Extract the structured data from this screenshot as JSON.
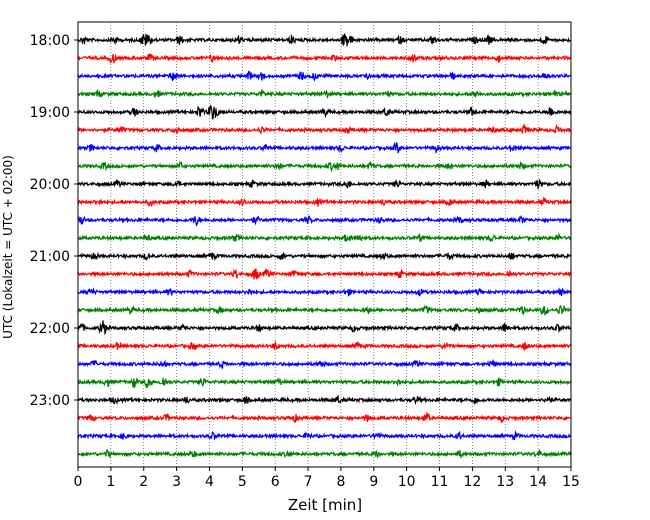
{
  "chart_data": {
    "type": "line",
    "title": "",
    "xlabel": "Zeit  [min]",
    "ylabel": "UTC (Lokalzeit = UTC + 02:00)",
    "xlim": [
      0,
      15
    ],
    "x_ticks": [
      "0",
      "1",
      "2",
      "3",
      "4",
      "5",
      "6",
      "7",
      "8",
      "9",
      "10",
      "11",
      "12",
      "13",
      "14",
      "15"
    ],
    "y_tick_labels": [
      "18:00",
      "19:00",
      "20:00",
      "21:00",
      "22:00",
      "23:00"
    ],
    "grid": "vertical dotted",
    "trace_colors": [
      "#000000",
      "#ff0000",
      "#0000ff",
      "#008000"
    ],
    "rows": [
      {
        "time": "18:00",
        "color": "#000000",
        "events": [
          [
            0.2,
            4
          ],
          [
            1.1,
            4
          ],
          [
            2.0,
            6
          ],
          [
            2.15,
            5
          ],
          [
            3.1,
            4
          ],
          [
            4.9,
            4
          ],
          [
            6.5,
            4
          ],
          [
            8.1,
            6
          ],
          [
            8.25,
            5
          ],
          [
            9.8,
            3
          ],
          [
            10.8,
            4
          ],
          [
            12.1,
            3
          ],
          [
            12.5,
            4
          ],
          [
            14.2,
            4
          ]
        ]
      },
      {
        "time": "18:15",
        "color": "#ff0000",
        "events": [
          [
            1.05,
            6
          ],
          [
            2.2,
            3
          ],
          [
            4.1,
            3
          ],
          [
            7.8,
            3
          ],
          [
            10.2,
            4
          ],
          [
            12.8,
            3
          ]
        ]
      },
      {
        "time": "18:30",
        "color": "#0000ff",
        "events": [
          [
            2.9,
            5
          ],
          [
            5.2,
            4
          ],
          [
            5.6,
            4
          ],
          [
            6.8,
            4
          ],
          [
            7.2,
            3
          ],
          [
            8.8,
            3
          ],
          [
            11.4,
            3
          ],
          [
            14.2,
            3
          ]
        ]
      },
      {
        "time": "18:45",
        "color": "#008000",
        "events": [
          [
            0.6,
            3
          ],
          [
            2.4,
            3
          ],
          [
            5.6,
            3
          ],
          [
            7.6,
            3
          ],
          [
            9.4,
            3
          ],
          [
            12.1,
            3
          ],
          [
            14.5,
            3
          ]
        ]
      },
      {
        "time": "19:00",
        "color": "#000000",
        "events": [
          [
            1.7,
            4
          ],
          [
            3.7,
            6
          ],
          [
            4.05,
            7
          ],
          [
            4.2,
            5
          ],
          [
            7.5,
            4
          ],
          [
            9.4,
            4
          ],
          [
            12.0,
            4
          ],
          [
            14.4,
            6
          ]
        ]
      },
      {
        "time": "19:15",
        "color": "#ff0000",
        "events": [
          [
            1.3,
            3
          ],
          [
            3.0,
            3
          ],
          [
            5.6,
            3
          ],
          [
            8.2,
            3
          ],
          [
            12.6,
            3
          ],
          [
            13.6,
            5
          ],
          [
            14.6,
            4
          ]
        ]
      },
      {
        "time": "19:30",
        "color": "#0000ff",
        "events": [
          [
            0.4,
            3
          ],
          [
            2.4,
            3
          ],
          [
            5.7,
            3
          ],
          [
            8.0,
            3
          ],
          [
            9.7,
            5
          ],
          [
            10.9,
            3
          ],
          [
            13.2,
            3
          ]
        ]
      },
      {
        "time": "19:45",
        "color": "#008000",
        "events": [
          [
            0.8,
            3
          ],
          [
            3.1,
            3
          ],
          [
            6.1,
            3
          ],
          [
            7.7,
            3
          ],
          [
            7.9,
            3
          ],
          [
            8.9,
            3
          ],
          [
            11.3,
            3
          ],
          [
            13.5,
            3
          ]
        ]
      },
      {
        "time": "20:00",
        "color": "#000000",
        "events": [
          [
            1.2,
            3
          ],
          [
            3.0,
            3
          ],
          [
            5.3,
            3
          ],
          [
            8.2,
            4
          ],
          [
            9.7,
            3
          ],
          [
            12.4,
            3
          ],
          [
            14.0,
            4
          ]
        ]
      },
      {
        "time": "20:15",
        "color": "#ff0000",
        "events": [
          [
            0.6,
            3
          ],
          [
            2.2,
            3
          ],
          [
            5.0,
            3
          ],
          [
            7.3,
            3
          ],
          [
            9.3,
            3
          ],
          [
            11.3,
            3
          ],
          [
            14.2,
            3
          ]
        ]
      },
      {
        "time": "20:30",
        "color": "#0000ff",
        "events": [
          [
            0.1,
            4
          ],
          [
            3.6,
            5
          ],
          [
            5.4,
            3
          ],
          [
            7.0,
            3
          ],
          [
            9.2,
            3
          ],
          [
            11.6,
            3
          ],
          [
            13.5,
            3
          ]
        ]
      },
      {
        "time": "20:45",
        "color": "#008000",
        "events": [
          [
            2.1,
            3
          ],
          [
            4.8,
            3
          ],
          [
            8.2,
            4
          ],
          [
            8.6,
            3
          ],
          [
            10.4,
            3
          ],
          [
            12.6,
            3
          ],
          [
            14.6,
            3
          ]
        ]
      },
      {
        "time": "21:00",
        "color": "#000000",
        "events": [
          [
            0.5,
            3
          ],
          [
            2.1,
            3
          ],
          [
            4.1,
            3
          ],
          [
            6.2,
            3
          ],
          [
            9.3,
            3
          ],
          [
            11.3,
            3
          ],
          [
            13.2,
            3
          ]
        ]
      },
      {
        "time": "21:15",
        "color": "#ff0000",
        "events": [
          [
            3.4,
            3
          ],
          [
            4.8,
            4
          ],
          [
            5.4,
            6
          ],
          [
            5.75,
            4
          ],
          [
            6.6,
            3
          ],
          [
            9.8,
            3
          ],
          [
            13.1,
            3
          ]
        ]
      },
      {
        "time": "21:30",
        "color": "#0000ff",
        "events": [
          [
            0.4,
            3
          ],
          [
            2.8,
            3
          ],
          [
            5.2,
            3
          ],
          [
            8.2,
            3
          ],
          [
            10.4,
            3
          ],
          [
            12.2,
            3
          ],
          [
            14.7,
            3
          ]
        ]
      },
      {
        "time": "21:45",
        "color": "#008000",
        "events": [
          [
            1.6,
            3
          ],
          [
            4.3,
            3
          ],
          [
            8.8,
            3
          ],
          [
            10.6,
            3
          ],
          [
            12.2,
            3
          ],
          [
            13.5,
            4
          ],
          [
            14.2,
            5
          ],
          [
            14.7,
            5
          ]
        ]
      },
      {
        "time": "22:00",
        "color": "#000000",
        "events": [
          [
            0.1,
            4
          ],
          [
            0.75,
            8
          ],
          [
            3.2,
            3
          ],
          [
            5.5,
            3
          ],
          [
            8.4,
            3
          ],
          [
            11.5,
            3
          ],
          [
            13.0,
            5
          ],
          [
            14.6,
            3
          ]
        ]
      },
      {
        "time": "22:15",
        "color": "#ff0000",
        "events": [
          [
            1.2,
            3
          ],
          [
            3.5,
            3
          ],
          [
            6.0,
            3
          ],
          [
            8.5,
            3
          ],
          [
            11.2,
            3
          ],
          [
            13.6,
            3
          ]
        ]
      },
      {
        "time": "22:30",
        "color": "#0000ff",
        "events": [
          [
            0.5,
            3
          ],
          [
            2.6,
            3
          ],
          [
            4.4,
            3
          ],
          [
            7.4,
            3
          ],
          [
            10.3,
            3
          ],
          [
            12.6,
            3
          ]
        ]
      },
      {
        "time": "22:45",
        "color": "#008000",
        "events": [
          [
            0.9,
            4
          ],
          [
            1.7,
            5
          ],
          [
            2.15,
            7
          ],
          [
            2.6,
            5
          ],
          [
            3.8,
            4
          ],
          [
            6.1,
            3
          ],
          [
            9.7,
            3
          ],
          [
            12.8,
            3
          ]
        ]
      },
      {
        "time": "23:00",
        "color": "#000000",
        "events": [
          [
            1.1,
            3
          ],
          [
            3.3,
            3
          ],
          [
            5.1,
            3
          ],
          [
            7.9,
            3
          ],
          [
            10.3,
            3
          ],
          [
            12.1,
            3
          ],
          [
            14.3,
            3
          ]
        ]
      },
      {
        "time": "23:15",
        "color": "#ff0000",
        "events": [
          [
            0.4,
            3
          ],
          [
            2.7,
            3
          ],
          [
            6.6,
            3
          ],
          [
            8.8,
            3
          ],
          [
            10.6,
            5
          ],
          [
            12.9,
            3
          ]
        ]
      },
      {
        "time": "23:30",
        "color": "#0000ff",
        "events": [
          [
            1.4,
            3
          ],
          [
            4.1,
            3
          ],
          [
            7.0,
            3
          ],
          [
            9.1,
            3
          ],
          [
            11.6,
            3
          ],
          [
            13.3,
            3
          ]
        ]
      },
      {
        "time": "23:45",
        "color": "#008000",
        "events": [
          [
            0.9,
            3
          ],
          [
            3.5,
            3
          ],
          [
            6.4,
            3
          ],
          [
            9.1,
            3
          ],
          [
            11.6,
            3
          ],
          [
            14.0,
            3
          ]
        ]
      }
    ]
  }
}
